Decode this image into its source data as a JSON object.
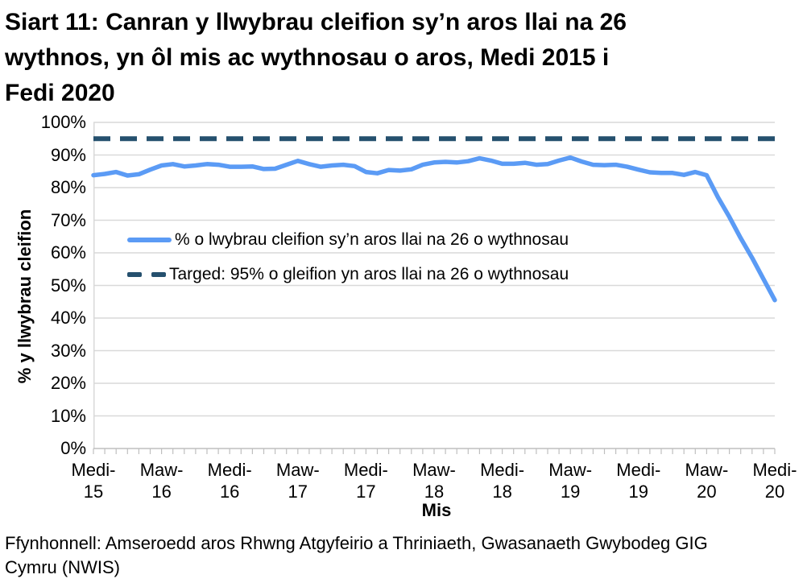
{
  "page": {
    "title_lines": [
      "Siart 11: Canran y llwybrau cleifion sy’n aros llai na 26",
      "wythnos, yn ôl mis ac wythnosau o aros, Medi 2015 i",
      "Fedi 2020"
    ],
    "source_lines": [
      "Ffynhonnell: Amseroedd aros Rhwng Atgyfeirio a Thriniaeth, Gwasanaeth Gwybodeg GIG",
      "Cymru (NWIS)"
    ]
  },
  "chart_data": {
    "type": "line",
    "title": "Siart 11: Canran y llwybrau cleifion sy’n aros llai na 26 wythnos, yn ôl mis ac wythnosau o aros, Medi 2015 i Fedi 2020",
    "xlabel": "Mis",
    "ylabel": "% y llwybrau cleifion",
    "ylim": [
      0,
      100
    ],
    "grid": "horizontal",
    "legend_position": "inside-upper-left",
    "y_tick_labels": [
      "100%",
      "90%",
      "80%",
      "70%",
      "60%",
      "50%",
      "40%",
      "30%",
      "20%",
      "10%",
      "0%"
    ],
    "x_tick_labels": [
      [
        "Medi-",
        "15"
      ],
      [
        "Maw-",
        "16"
      ],
      [
        "Medi-",
        "16"
      ],
      [
        "Maw-",
        "17"
      ],
      [
        "Medi-",
        "17"
      ],
      [
        "Maw-",
        "18"
      ],
      [
        "Medi-",
        "18"
      ],
      [
        "Maw-",
        "19"
      ],
      [
        "Medi-",
        "19"
      ],
      [
        "Maw-",
        "20"
      ],
      [
        "Medi-",
        "20"
      ]
    ],
    "x": [
      "2015-09",
      "2015-10",
      "2015-11",
      "2015-12",
      "2016-01",
      "2016-02",
      "2016-03",
      "2016-04",
      "2016-05",
      "2016-06",
      "2016-07",
      "2016-08",
      "2016-09",
      "2016-10",
      "2016-11",
      "2016-12",
      "2017-01",
      "2017-02",
      "2017-03",
      "2017-04",
      "2017-05",
      "2017-06",
      "2017-07",
      "2017-08",
      "2017-09",
      "2017-10",
      "2017-11",
      "2017-12",
      "2018-01",
      "2018-02",
      "2018-03",
      "2018-04",
      "2018-05",
      "2018-06",
      "2018-07",
      "2018-08",
      "2018-09",
      "2018-10",
      "2018-11",
      "2018-12",
      "2019-01",
      "2019-02",
      "2019-03",
      "2019-04",
      "2019-05",
      "2019-06",
      "2019-07",
      "2019-08",
      "2019-09",
      "2019-10",
      "2019-11",
      "2019-12",
      "2020-01",
      "2020-02",
      "2020-03",
      "2020-04",
      "2020-05",
      "2020-06",
      "2020-07",
      "2020-08",
      "2020-09"
    ],
    "series": [
      {
        "name": "% o lwybrau cleifion sy’n aros llai na 26 o wythnosau",
        "style": "solid",
        "color": "#5B9BF5",
        "values": [
          83.8,
          84.2,
          84.8,
          83.7,
          84.1,
          85.5,
          86.8,
          87.2,
          86.5,
          86.8,
          87.2,
          87.0,
          86.4,
          86.4,
          86.5,
          85.7,
          85.8,
          87.0,
          88.2,
          87.2,
          86.4,
          86.8,
          87.0,
          86.6,
          84.8,
          84.4,
          85.4,
          85.2,
          85.6,
          87.0,
          87.7,
          87.9,
          87.7,
          88.1,
          89.0,
          88.3,
          87.3,
          87.3,
          87.6,
          87.0,
          87.2,
          88.3,
          89.2,
          88.0,
          87.0,
          86.9,
          87.0,
          86.4,
          85.5,
          84.7,
          84.5,
          84.5,
          83.9,
          84.8,
          83.8,
          77.0,
          71.0,
          64.5,
          58.5,
          52.0,
          45.5
        ]
      },
      {
        "name": "Targed: 95% o gleifion yn aros llai na 26 o wythnosau",
        "style": "dashed",
        "color": "#25506E",
        "value": 95
      }
    ],
    "colors": {
      "gridline": "#D9D9D9",
      "axis": "#BFBFBF",
      "text": "#000000"
    }
  }
}
